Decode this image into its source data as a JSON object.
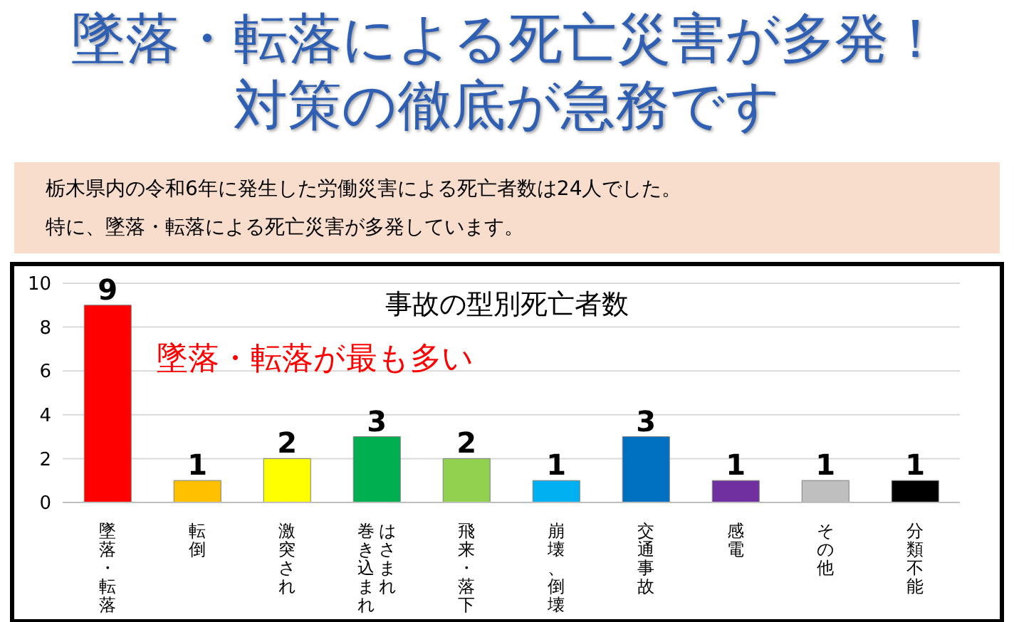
{
  "chart_data": {
    "type": "bar",
    "title": "事故の型別死亡者数",
    "annotations": [
      "墜落・転落による死亡災害が多発！対策の徹底が急務です",
      "栃木県内の令和6年に発生した労働災害による死亡者数は24人でした。",
      "特に、墜落・転落による死亡災害が多発しています。",
      "墜落・転落が最も多い"
    ],
    "categories": [
      "墜落・転落",
      "転倒",
      "激突され",
      "はさまれ巻き込まれ",
      "飛来・落下",
      "崩壊、倒壊",
      "交通事故",
      "感電",
      "その他",
      "分類不能"
    ],
    "values": [
      9,
      1,
      2,
      3,
      2,
      1,
      3,
      1,
      1,
      1
    ],
    "colors": [
      "#ff0000",
      "#ffc000",
      "#ffff00",
      "#00b050",
      "#92d050",
      "#00b0f0",
      "#0070c0",
      "#7030a0",
      "#bfbfbf",
      "#000000"
    ],
    "ylim": [
      0,
      10
    ],
    "yticks": [
      0,
      2,
      4,
      6,
      8,
      10
    ],
    "grid": "y",
    "data_labels": true,
    "legend": false
  }
}
